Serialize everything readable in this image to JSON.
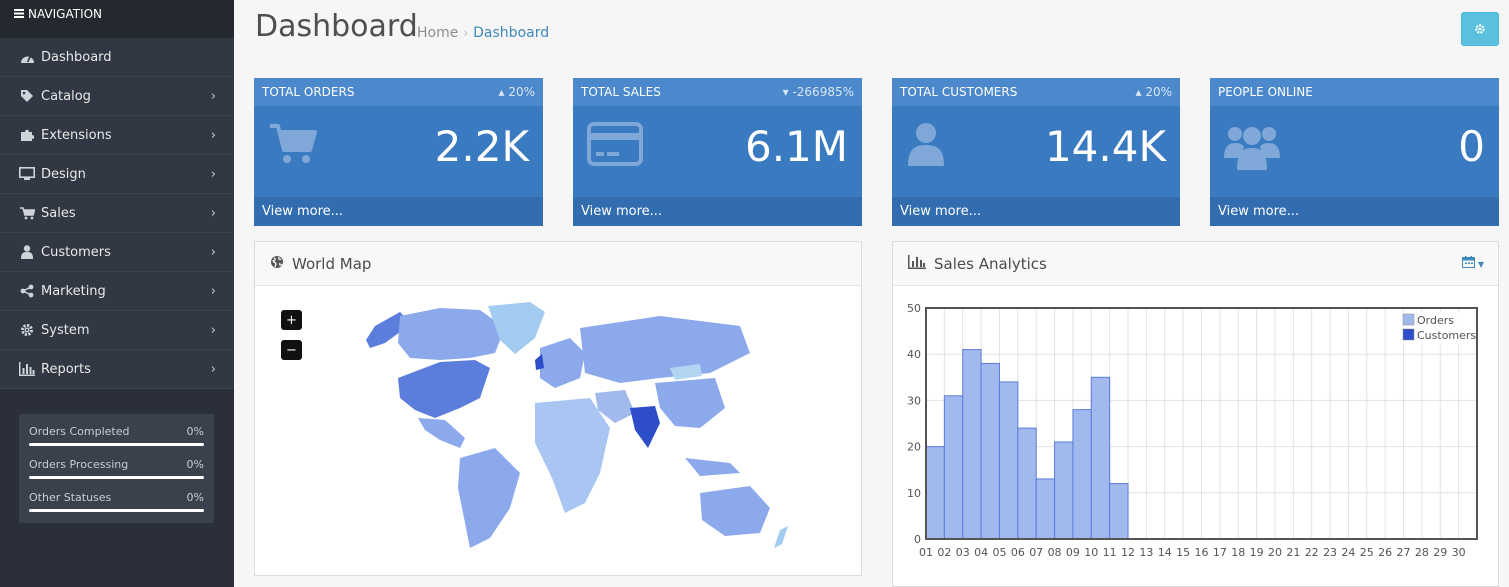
{
  "sidebar": {
    "header": "NAVIGATION",
    "items": [
      {
        "label": "Dashboard",
        "icon": "dashboard-icon"
      },
      {
        "label": "Catalog",
        "icon": "tag-icon"
      },
      {
        "label": "Extensions",
        "icon": "puzzle-icon"
      },
      {
        "label": "Design",
        "icon": "desktop-icon"
      },
      {
        "label": "Sales",
        "icon": "cart-icon"
      },
      {
        "label": "Customers",
        "icon": "user-icon"
      },
      {
        "label": "Marketing",
        "icon": "share-icon"
      },
      {
        "label": "System",
        "icon": "gear-icon"
      },
      {
        "label": "Reports",
        "icon": "bar-chart-icon"
      }
    ],
    "stats": [
      {
        "label": "Orders Completed",
        "value": "0%"
      },
      {
        "label": "Orders Processing",
        "value": "0%"
      },
      {
        "label": "Other Statuses",
        "value": "0%"
      }
    ]
  },
  "header": {
    "title": "Dashboard",
    "breadcrumb": [
      "Home",
      "Dashboard"
    ]
  },
  "tiles": [
    {
      "title": "TOTAL ORDERS",
      "change": "20%",
      "direction": "up",
      "value": "2.2K",
      "footer": "View more...",
      "icon": "cart-icon"
    },
    {
      "title": "TOTAL SALES",
      "change": "-266985%",
      "direction": "down",
      "value": "6.1M",
      "footer": "View more...",
      "icon": "credit-card-icon"
    },
    {
      "title": "TOTAL CUSTOMERS",
      "change": "20%",
      "direction": "up",
      "value": "14.4K",
      "footer": "View more...",
      "icon": "user-icon"
    },
    {
      "title": "PEOPLE ONLINE",
      "change": "",
      "direction": "",
      "value": "0",
      "footer": "View more...",
      "icon": "users-icon"
    }
  ],
  "map": {
    "title": "World Map",
    "zoom_in": "+",
    "zoom_out": "−"
  },
  "sales": {
    "title": "Sales Analytics"
  },
  "colors": {
    "sidebar_bg": "#2a2f39",
    "tile_bg": "#3a7ac0",
    "accent": "#3e88ba",
    "orders": "#a2b9ee",
    "customers": "#2d4ec8"
  },
  "chart_data": {
    "type": "bar",
    "categories": [
      "01",
      "02",
      "03",
      "04",
      "05",
      "06",
      "07",
      "08",
      "09",
      "10",
      "11",
      "12",
      "13",
      "14",
      "15",
      "16",
      "17",
      "18",
      "19",
      "20",
      "21",
      "22",
      "23",
      "24",
      "25",
      "26",
      "27",
      "28",
      "29",
      "30"
    ],
    "series": [
      {
        "name": "Orders",
        "values": [
          20,
          31,
          41,
          38,
          34,
          24,
          13,
          21,
          28,
          35,
          12,
          0,
          0,
          0,
          0,
          0,
          0,
          0,
          0,
          0,
          0,
          0,
          0,
          0,
          0,
          0,
          0,
          0,
          0,
          0
        ]
      },
      {
        "name": "Customers",
        "values": [
          0,
          0,
          0,
          0,
          0,
          0,
          0,
          0,
          0,
          0,
          0,
          0,
          0,
          0,
          0,
          0,
          0,
          0,
          0,
          0,
          0,
          0,
          0,
          0,
          0,
          0,
          0,
          0,
          0,
          0
        ]
      }
    ],
    "yticks": [
      0,
      10,
      20,
      30,
      40,
      50
    ],
    "ylim": [
      0,
      50
    ],
    "grid": true,
    "legend": "top-right"
  }
}
